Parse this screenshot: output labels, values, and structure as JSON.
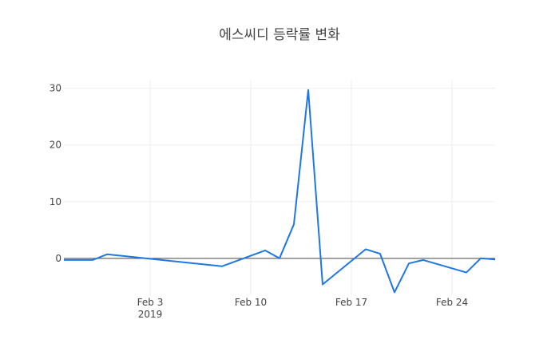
{
  "chart_data": {
    "type": "line",
    "title": "에스씨디 등락률 변화",
    "xlabel": "",
    "ylabel": "",
    "x_axis": {
      "ticks": [
        {
          "date": "2019-02-03",
          "label": "Feb 3",
          "sublabel": "2019"
        },
        {
          "date": "2019-02-10",
          "label": "Feb 10",
          "sublabel": ""
        },
        {
          "date": "2019-02-17",
          "label": "Feb 17",
          "sublabel": ""
        },
        {
          "date": "2019-02-24",
          "label": "Feb 24",
          "sublabel": ""
        }
      ],
      "range": [
        "2019-01-28",
        "2019-02-26"
      ]
    },
    "y_axis": {
      "ticks": [
        0,
        10,
        20,
        30
      ],
      "range": [
        -6.5,
        31.5
      ]
    },
    "grid": true,
    "series": [
      {
        "name": "",
        "color": "#1f77e6",
        "points": [
          {
            "x": "2019-01-28",
            "y": -0.3
          },
          {
            "x": "2019-01-30",
            "y": -0.3
          },
          {
            "x": "2019-01-31",
            "y": 0.7
          },
          {
            "x": "2019-02-08",
            "y": -1.4
          },
          {
            "x": "2019-02-11",
            "y": 1.4
          },
          {
            "x": "2019-02-12",
            "y": 0.0
          },
          {
            "x": "2019-02-13",
            "y": 6.0
          },
          {
            "x": "2019-02-14",
            "y": 29.7
          },
          {
            "x": "2019-02-15",
            "y": -4.6
          },
          {
            "x": "2019-02-18",
            "y": 1.6
          },
          {
            "x": "2019-02-19",
            "y": 0.8
          },
          {
            "x": "2019-02-20",
            "y": -6.0
          },
          {
            "x": "2019-02-21",
            "y": -0.9
          },
          {
            "x": "2019-02-22",
            "y": -0.3
          },
          {
            "x": "2019-02-25",
            "y": -2.5
          },
          {
            "x": "2019-02-26",
            "y": 0.0
          },
          {
            "x": "2019-02-27",
            "y": -0.2
          }
        ]
      }
    ]
  }
}
